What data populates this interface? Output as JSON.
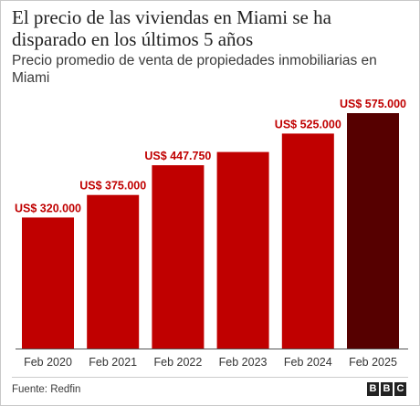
{
  "header": {
    "title": "El precio de las viviendas en Miami se ha disparado en los últimos 5 años",
    "subtitle": "Precio promedio de venta de propiedades inmobiliarias en Miami"
  },
  "footer": {
    "source": "Fuente: Redfin",
    "logo_letters": [
      "B",
      "B",
      "C"
    ]
  },
  "colors": {
    "bar": "#c00000",
    "bar_highlight": "#560000",
    "label": "#c00000"
  },
  "chart_data": {
    "type": "bar",
    "categories": [
      "Feb 2020",
      "Feb 2021",
      "Feb 2022",
      "Feb 2023",
      "Feb 2024",
      "Feb 2025"
    ],
    "values": [
      320000,
      375000,
      447750,
      480000,
      525000,
      575000
    ],
    "data_labels": [
      "US$ 320.000",
      "US$ 375.000",
      "US$ 447.750",
      "",
      "US$ 525.000",
      "US$ 575.000"
    ],
    "highlight_index": 5,
    "ylim": [
      0,
      575000
    ],
    "grid": false,
    "legend": "none"
  }
}
